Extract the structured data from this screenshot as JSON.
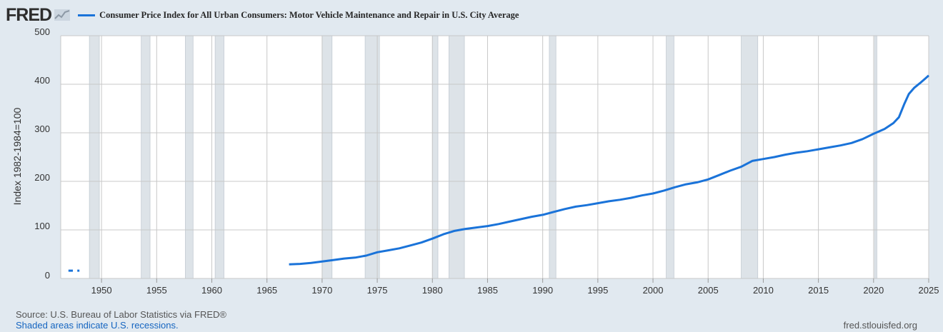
{
  "brand": {
    "logo_text": "FRED",
    "logo_icon": "line-chart-icon"
  },
  "colors": {
    "series": "#1a73d9",
    "recession": "#dde3e8",
    "grid": "#c8c8c8",
    "plot_bg": "#ffffff"
  },
  "footer": {
    "source": "Source: U.S. Bureau of Labor Statistics via FRED®",
    "recession_note": "Shaded areas indicate U.S. recessions.",
    "site": "fred.stlouisfed.org"
  },
  "chart_data": {
    "type": "line",
    "title": "Consumer Price Index for All Urban Consumers: Motor Vehicle Maintenance and Repair in U.S. City Average",
    "ylabel": "Index 1982-1984=100",
    "xlabel": "",
    "xlim": [
      1946.3,
      2025
    ],
    "ylim": [
      0,
      500
    ],
    "xticks": [
      1950,
      1955,
      1960,
      1965,
      1970,
      1975,
      1980,
      1985,
      1990,
      1995,
      2000,
      2005,
      2010,
      2015,
      2020,
      2025
    ],
    "yticks": [
      0,
      100,
      200,
      300,
      400,
      500
    ],
    "grid": true,
    "legend": "top-left",
    "recessions": [
      [
        1948.9,
        1949.8
      ],
      [
        1953.6,
        1954.4
      ],
      [
        1957.6,
        1958.3
      ],
      [
        1960.3,
        1961.1
      ],
      [
        1970.0,
        1970.9
      ],
      [
        1973.9,
        1975.2
      ],
      [
        1980.0,
        1980.5
      ],
      [
        1981.5,
        1982.9
      ],
      [
        1990.6,
        1991.2
      ],
      [
        2001.2,
        2001.9
      ],
      [
        2008.0,
        2009.5
      ],
      [
        2020.1,
        2020.3
      ]
    ],
    "series": [
      {
        "name": "Consumer Price Index for All Urban Consumers: Motor Vehicle Maintenance and Repair in U.S. City Average",
        "segments": [
          {
            "x": [
              1947.0,
              1947.4
            ],
            "y": [
              16,
              16
            ]
          },
          {
            "x": [
              1947.8,
              1948.0
            ],
            "y": [
              16,
              16
            ]
          },
          {
            "x": [
              1967.0,
              1968,
              1969,
              1970,
              1971,
              1972,
              1973,
              1974,
              1975,
              1976,
              1977,
              1978,
              1979,
              1980,
              1981,
              1982,
              1983,
              1984,
              1985,
              1986,
              1987,
              1988,
              1989,
              1990,
              1991,
              1992,
              1993,
              1994,
              1995,
              1996,
              1997,
              1998,
              1999,
              2000,
              2001,
              2002,
              2003,
              2004,
              2005,
              2006,
              2007,
              2008,
              2009,
              2010,
              2011,
              2012,
              2013,
              2014,
              2015,
              2016,
              2017,
              2018,
              2019,
              2020,
              2021,
              2021.8,
              2022.3,
              2022.8,
              2023.2,
              2023.7,
              2024.2,
              2024.6,
              2025
            ],
            "y": [
              29,
              30,
              32,
              35,
              38,
              41,
              43,
              47,
              54,
              58,
              62,
              68,
              74,
              82,
              91,
              98,
              102,
              105,
              108,
              112,
              117,
              122,
              127,
              131,
              137,
              143,
              148,
              151,
              155,
              159,
              162,
              166,
              171,
              175,
              181,
              188,
              194,
              198,
              204,
              213,
              222,
              230,
              242,
              246,
              250,
              255,
              259,
              262,
              266,
              270,
              274,
              279,
              287,
              298,
              308,
              320,
              332,
              360,
              380,
              393,
              402,
              410,
              418
            ]
          }
        ]
      }
    ]
  }
}
